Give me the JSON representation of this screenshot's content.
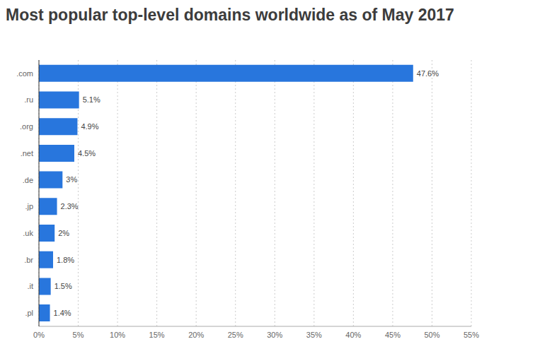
{
  "chart_data": {
    "type": "bar",
    "title": "Most popular top-level domains worldwide as of May 2017",
    "orientation": "horizontal",
    "categories": [
      ".com",
      ".ru",
      ".org",
      ".net",
      ".de",
      ".jp",
      ".uk",
      ".br",
      ".it",
      ".pl"
    ],
    "values": [
      47.6,
      5.1,
      4.9,
      4.5,
      3,
      2.3,
      2,
      1.8,
      1.5,
      1.4
    ],
    "value_labels": [
      "47.6%",
      "5.1%",
      "4.9%",
      "4.5%",
      "3%",
      "2.3%",
      "2%",
      "1.8%",
      "1.5%",
      "1.4%"
    ],
    "color": "#2876dd",
    "xlim": [
      0,
      55
    ],
    "xticks": [
      {
        "value": 0,
        "label": "0%"
      },
      {
        "value": 5,
        "label": "5%"
      },
      {
        "value": 10,
        "label": "10%"
      },
      {
        "value": 15,
        "label": "15%"
      },
      {
        "value": 20,
        "label": "20%"
      },
      {
        "value": 25,
        "label": "25%"
      },
      {
        "value": 30,
        "label": "30%"
      },
      {
        "value": 35,
        "label": "35%"
      },
      {
        "value": 40,
        "label": "40%"
      },
      {
        "value": 45,
        "label": "45%"
      },
      {
        "value": 50,
        "label": "50%"
      },
      {
        "value": 55,
        "label": "55%"
      }
    ],
    "grid": true,
    "data_labels": true
  }
}
